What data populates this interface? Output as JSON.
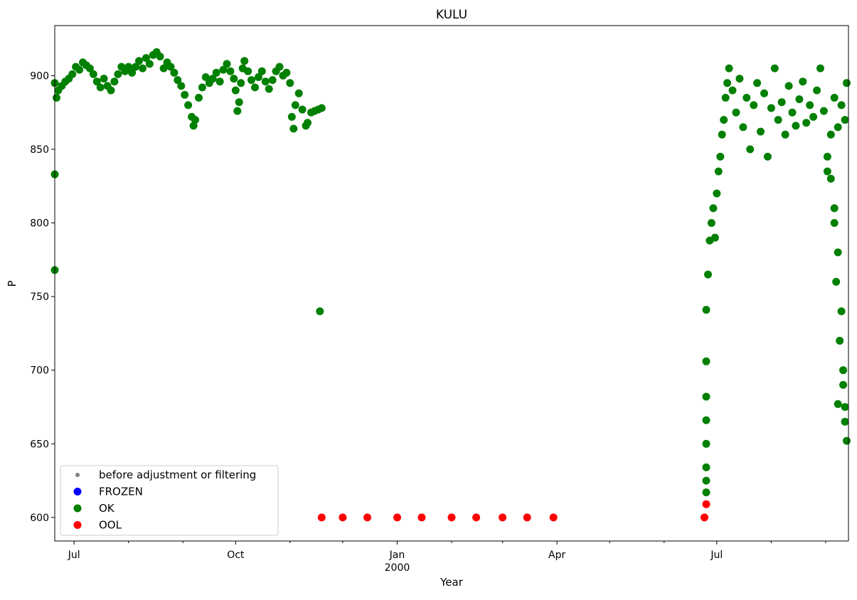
{
  "chart_data": {
    "type": "scatter",
    "title": "KULU",
    "xlabel": "Year",
    "ylabel": "P",
    "xlim": [
      "1999-06-20",
      "2000-09-14"
    ],
    "ylim": [
      584,
      934
    ],
    "yticks": [
      600,
      650,
      700,
      750,
      800,
      850,
      900
    ],
    "xticks": [
      {
        "date": "1999-07-01",
        "label": "Jul",
        "sub": ""
      },
      {
        "date": "1999-10-01",
        "label": "Oct",
        "sub": ""
      },
      {
        "date": "2000-01-01",
        "label": "Jan",
        "sub": "2000"
      },
      {
        "date": "2000-04-01",
        "label": "Apr",
        "sub": ""
      },
      {
        "date": "2000-07-01",
        "label": "Jul",
        "sub": ""
      }
    ],
    "minor_xticks": [
      "1999-08-01",
      "1999-09-01",
      "1999-11-01",
      "1999-12-01",
      "2000-02-01",
      "2000-03-01",
      "2000-05-01",
      "2000-06-01",
      "2000-08-01",
      "2000-09-01"
    ],
    "grid": false,
    "legend_position": "lower-left",
    "series": [
      {
        "name": "before adjustment or filtering",
        "color": "#808080",
        "marker": "small-dot",
        "points": []
      },
      {
        "name": "FROZEN",
        "color": "#0000ff",
        "marker": "dot",
        "points": []
      },
      {
        "name": "OK",
        "color": "#008000",
        "marker": "dot",
        "points": [
          [
            "1999-06-20",
            895
          ],
          [
            "1999-06-21",
            885
          ],
          [
            "1999-06-22",
            890
          ],
          [
            "1999-06-24",
            893
          ],
          [
            "1999-06-26",
            896
          ],
          [
            "1999-06-28",
            898
          ],
          [
            "1999-06-30",
            901
          ],
          [
            "1999-07-02",
            906
          ],
          [
            "1999-07-04",
            904
          ],
          [
            "1999-07-06",
            909
          ],
          [
            "1999-07-08",
            907
          ],
          [
            "1999-07-10",
            905
          ],
          [
            "1999-07-12",
            901
          ],
          [
            "1999-07-14",
            896
          ],
          [
            "1999-07-16",
            892
          ],
          [
            "1999-07-18",
            898
          ],
          [
            "1999-07-20",
            893
          ],
          [
            "1999-07-22",
            890
          ],
          [
            "1999-07-24",
            896
          ],
          [
            "1999-07-26",
            901
          ],
          [
            "1999-07-28",
            906
          ],
          [
            "1999-07-30",
            903
          ],
          [
            "1999-08-01",
            906
          ],
          [
            "1999-08-03",
            902
          ],
          [
            "1999-08-05",
            906
          ],
          [
            "1999-08-07",
            910
          ],
          [
            "1999-08-09",
            905
          ],
          [
            "1999-08-11",
            912
          ],
          [
            "1999-08-13",
            908
          ],
          [
            "1999-08-15",
            914
          ],
          [
            "1999-08-17",
            916
          ],
          [
            "1999-08-19",
            913
          ],
          [
            "1999-08-21",
            905
          ],
          [
            "1999-08-23",
            909
          ],
          [
            "1999-08-25",
            906
          ],
          [
            "1999-08-27",
            902
          ],
          [
            "1999-08-29",
            897
          ],
          [
            "1999-08-31",
            893
          ],
          [
            "1999-09-02",
            887
          ],
          [
            "1999-09-04",
            880
          ],
          [
            "1999-09-06",
            872
          ],
          [
            "1999-09-07",
            866
          ],
          [
            "1999-09-08",
            870
          ],
          [
            "1999-09-10",
            885
          ],
          [
            "1999-09-12",
            892
          ],
          [
            "1999-09-14",
            899
          ],
          [
            "1999-09-16",
            895
          ],
          [
            "1999-09-18",
            898
          ],
          [
            "1999-09-20",
            902
          ],
          [
            "1999-09-22",
            896
          ],
          [
            "1999-09-24",
            904
          ],
          [
            "1999-09-26",
            908
          ],
          [
            "1999-09-28",
            903
          ],
          [
            "1999-09-30",
            898
          ],
          [
            "1999-10-01",
            890
          ],
          [
            "1999-10-02",
            876
          ],
          [
            "1999-10-03",
            882
          ],
          [
            "1999-10-04",
            895
          ],
          [
            "1999-10-05",
            905
          ],
          [
            "1999-10-06",
            910
          ],
          [
            "1999-10-08",
            903
          ],
          [
            "1999-10-10",
            897
          ],
          [
            "1999-10-12",
            892
          ],
          [
            "1999-10-14",
            899
          ],
          [
            "1999-10-16",
            903
          ],
          [
            "1999-10-18",
            896
          ],
          [
            "1999-10-20",
            891
          ],
          [
            "1999-10-22",
            897
          ],
          [
            "1999-10-24",
            903
          ],
          [
            "1999-10-26",
            906
          ],
          [
            "1999-10-28",
            900
          ],
          [
            "1999-10-30",
            902
          ],
          [
            "1999-11-01",
            895
          ],
          [
            "1999-11-02",
            872
          ],
          [
            "1999-11-03",
            864
          ],
          [
            "1999-11-04",
            880
          ],
          [
            "1999-11-06",
            888
          ],
          [
            "1999-11-08",
            877
          ],
          [
            "1999-11-10",
            866
          ],
          [
            "1999-11-11",
            868
          ],
          [
            "1999-11-13",
            875
          ],
          [
            "1999-11-15",
            876
          ],
          [
            "1999-11-17",
            877
          ],
          [
            "1999-11-18",
            740
          ],
          [
            "1999-11-19",
            878
          ],
          [
            "1999-06-20",
            833
          ],
          [
            "1999-06-20",
            768
          ],
          [
            "2000-06-25",
            741
          ],
          [
            "2000-06-25",
            706
          ],
          [
            "2000-06-25",
            682
          ],
          [
            "2000-06-25",
            666
          ],
          [
            "2000-06-25",
            650
          ],
          [
            "2000-06-25",
            634
          ],
          [
            "2000-06-25",
            625
          ],
          [
            "2000-06-25",
            617
          ],
          [
            "2000-06-26",
            765
          ],
          [
            "2000-06-27",
            788
          ],
          [
            "2000-06-28",
            800
          ],
          [
            "2000-06-29",
            810
          ],
          [
            "2000-06-30",
            790
          ],
          [
            "2000-07-01",
            820
          ],
          [
            "2000-07-02",
            835
          ],
          [
            "2000-07-03",
            845
          ],
          [
            "2000-07-04",
            860
          ],
          [
            "2000-07-05",
            870
          ],
          [
            "2000-07-06",
            885
          ],
          [
            "2000-07-07",
            895
          ],
          [
            "2000-07-08",
            905
          ],
          [
            "2000-07-10",
            890
          ],
          [
            "2000-07-12",
            875
          ],
          [
            "2000-07-14",
            898
          ],
          [
            "2000-07-16",
            865
          ],
          [
            "2000-07-18",
            885
          ],
          [
            "2000-07-20",
            850
          ],
          [
            "2000-07-22",
            880
          ],
          [
            "2000-07-24",
            895
          ],
          [
            "2000-07-26",
            862
          ],
          [
            "2000-07-28",
            888
          ],
          [
            "2000-07-30",
            845
          ],
          [
            "2000-08-01",
            878
          ],
          [
            "2000-08-03",
            905
          ],
          [
            "2000-08-05",
            870
          ],
          [
            "2000-08-07",
            882
          ],
          [
            "2000-08-09",
            860
          ],
          [
            "2000-08-11",
            893
          ],
          [
            "2000-08-13",
            875
          ],
          [
            "2000-08-15",
            866
          ],
          [
            "2000-08-17",
            884
          ],
          [
            "2000-08-19",
            896
          ],
          [
            "2000-08-21",
            868
          ],
          [
            "2000-08-23",
            880
          ],
          [
            "2000-08-25",
            872
          ],
          [
            "2000-08-27",
            890
          ],
          [
            "2000-08-29",
            905
          ],
          [
            "2000-08-31",
            876
          ],
          [
            "2000-09-02",
            845
          ],
          [
            "2000-09-04",
            860
          ],
          [
            "2000-09-06",
            885
          ],
          [
            "2000-09-08",
            865
          ],
          [
            "2000-09-10",
            880
          ],
          [
            "2000-09-12",
            870
          ],
          [
            "2000-09-13",
            895
          ],
          [
            "2000-09-02",
            835
          ],
          [
            "2000-09-04",
            830
          ],
          [
            "2000-09-06",
            810
          ],
          [
            "2000-09-08",
            780
          ],
          [
            "2000-09-10",
            740
          ],
          [
            "2000-09-11",
            700
          ],
          [
            "2000-09-12",
            675
          ],
          [
            "2000-09-13",
            652
          ],
          [
            "2000-09-07",
            760
          ],
          [
            "2000-09-09",
            720
          ],
          [
            "2000-09-11",
            690
          ],
          [
            "2000-09-06",
            800
          ],
          [
            "2000-09-08",
            677
          ],
          [
            "2000-09-12",
            665
          ]
        ]
      },
      {
        "name": "OOL",
        "color": "#ff0000",
        "marker": "dot",
        "points": [
          [
            "1999-11-19",
            600
          ],
          [
            "1999-12-01",
            600
          ],
          [
            "1999-12-15",
            600
          ],
          [
            "2000-01-01",
            600
          ],
          [
            "2000-01-15",
            600
          ],
          [
            "2000-02-01",
            600
          ],
          [
            "2000-02-15",
            600
          ],
          [
            "2000-03-01",
            600
          ],
          [
            "2000-03-15",
            600
          ],
          [
            "2000-03-30",
            600
          ],
          [
            "2000-06-24",
            600
          ],
          [
            "2000-06-25",
            609
          ]
        ]
      }
    ]
  }
}
